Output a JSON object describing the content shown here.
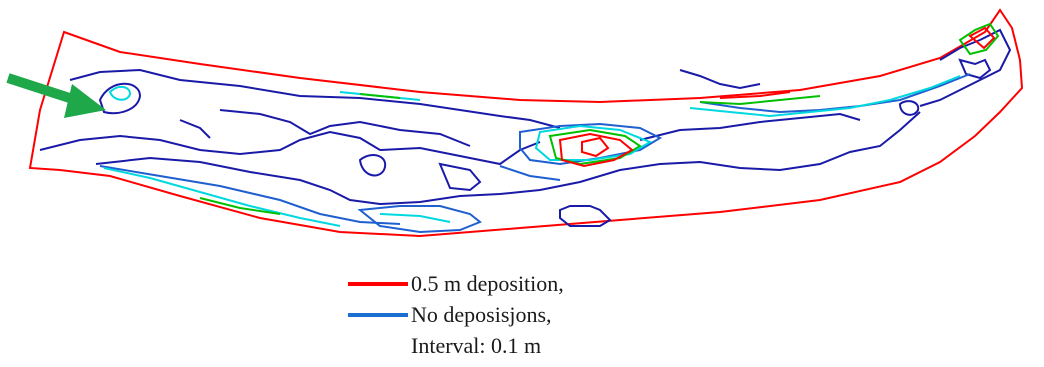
{
  "figure": {
    "contour_colors": {
      "deposition_max": "#ff0000",
      "no_deposition": "#1a1aa8",
      "level_green": "#00c000",
      "level_cyan": "#00d8e0",
      "level_blue": "#1f5fd0",
      "arrow": "#1ea84a"
    },
    "arrow_icon": "flow-direction-arrow"
  },
  "legend": {
    "items": [
      {
        "label": "0.5 m deposition,",
        "color": "#ff0000"
      },
      {
        "label": "No deposisjons,",
        "color": "#1a6fd0"
      },
      {
        "label": "Interval: 0.1 m",
        "color": ""
      }
    ]
  }
}
